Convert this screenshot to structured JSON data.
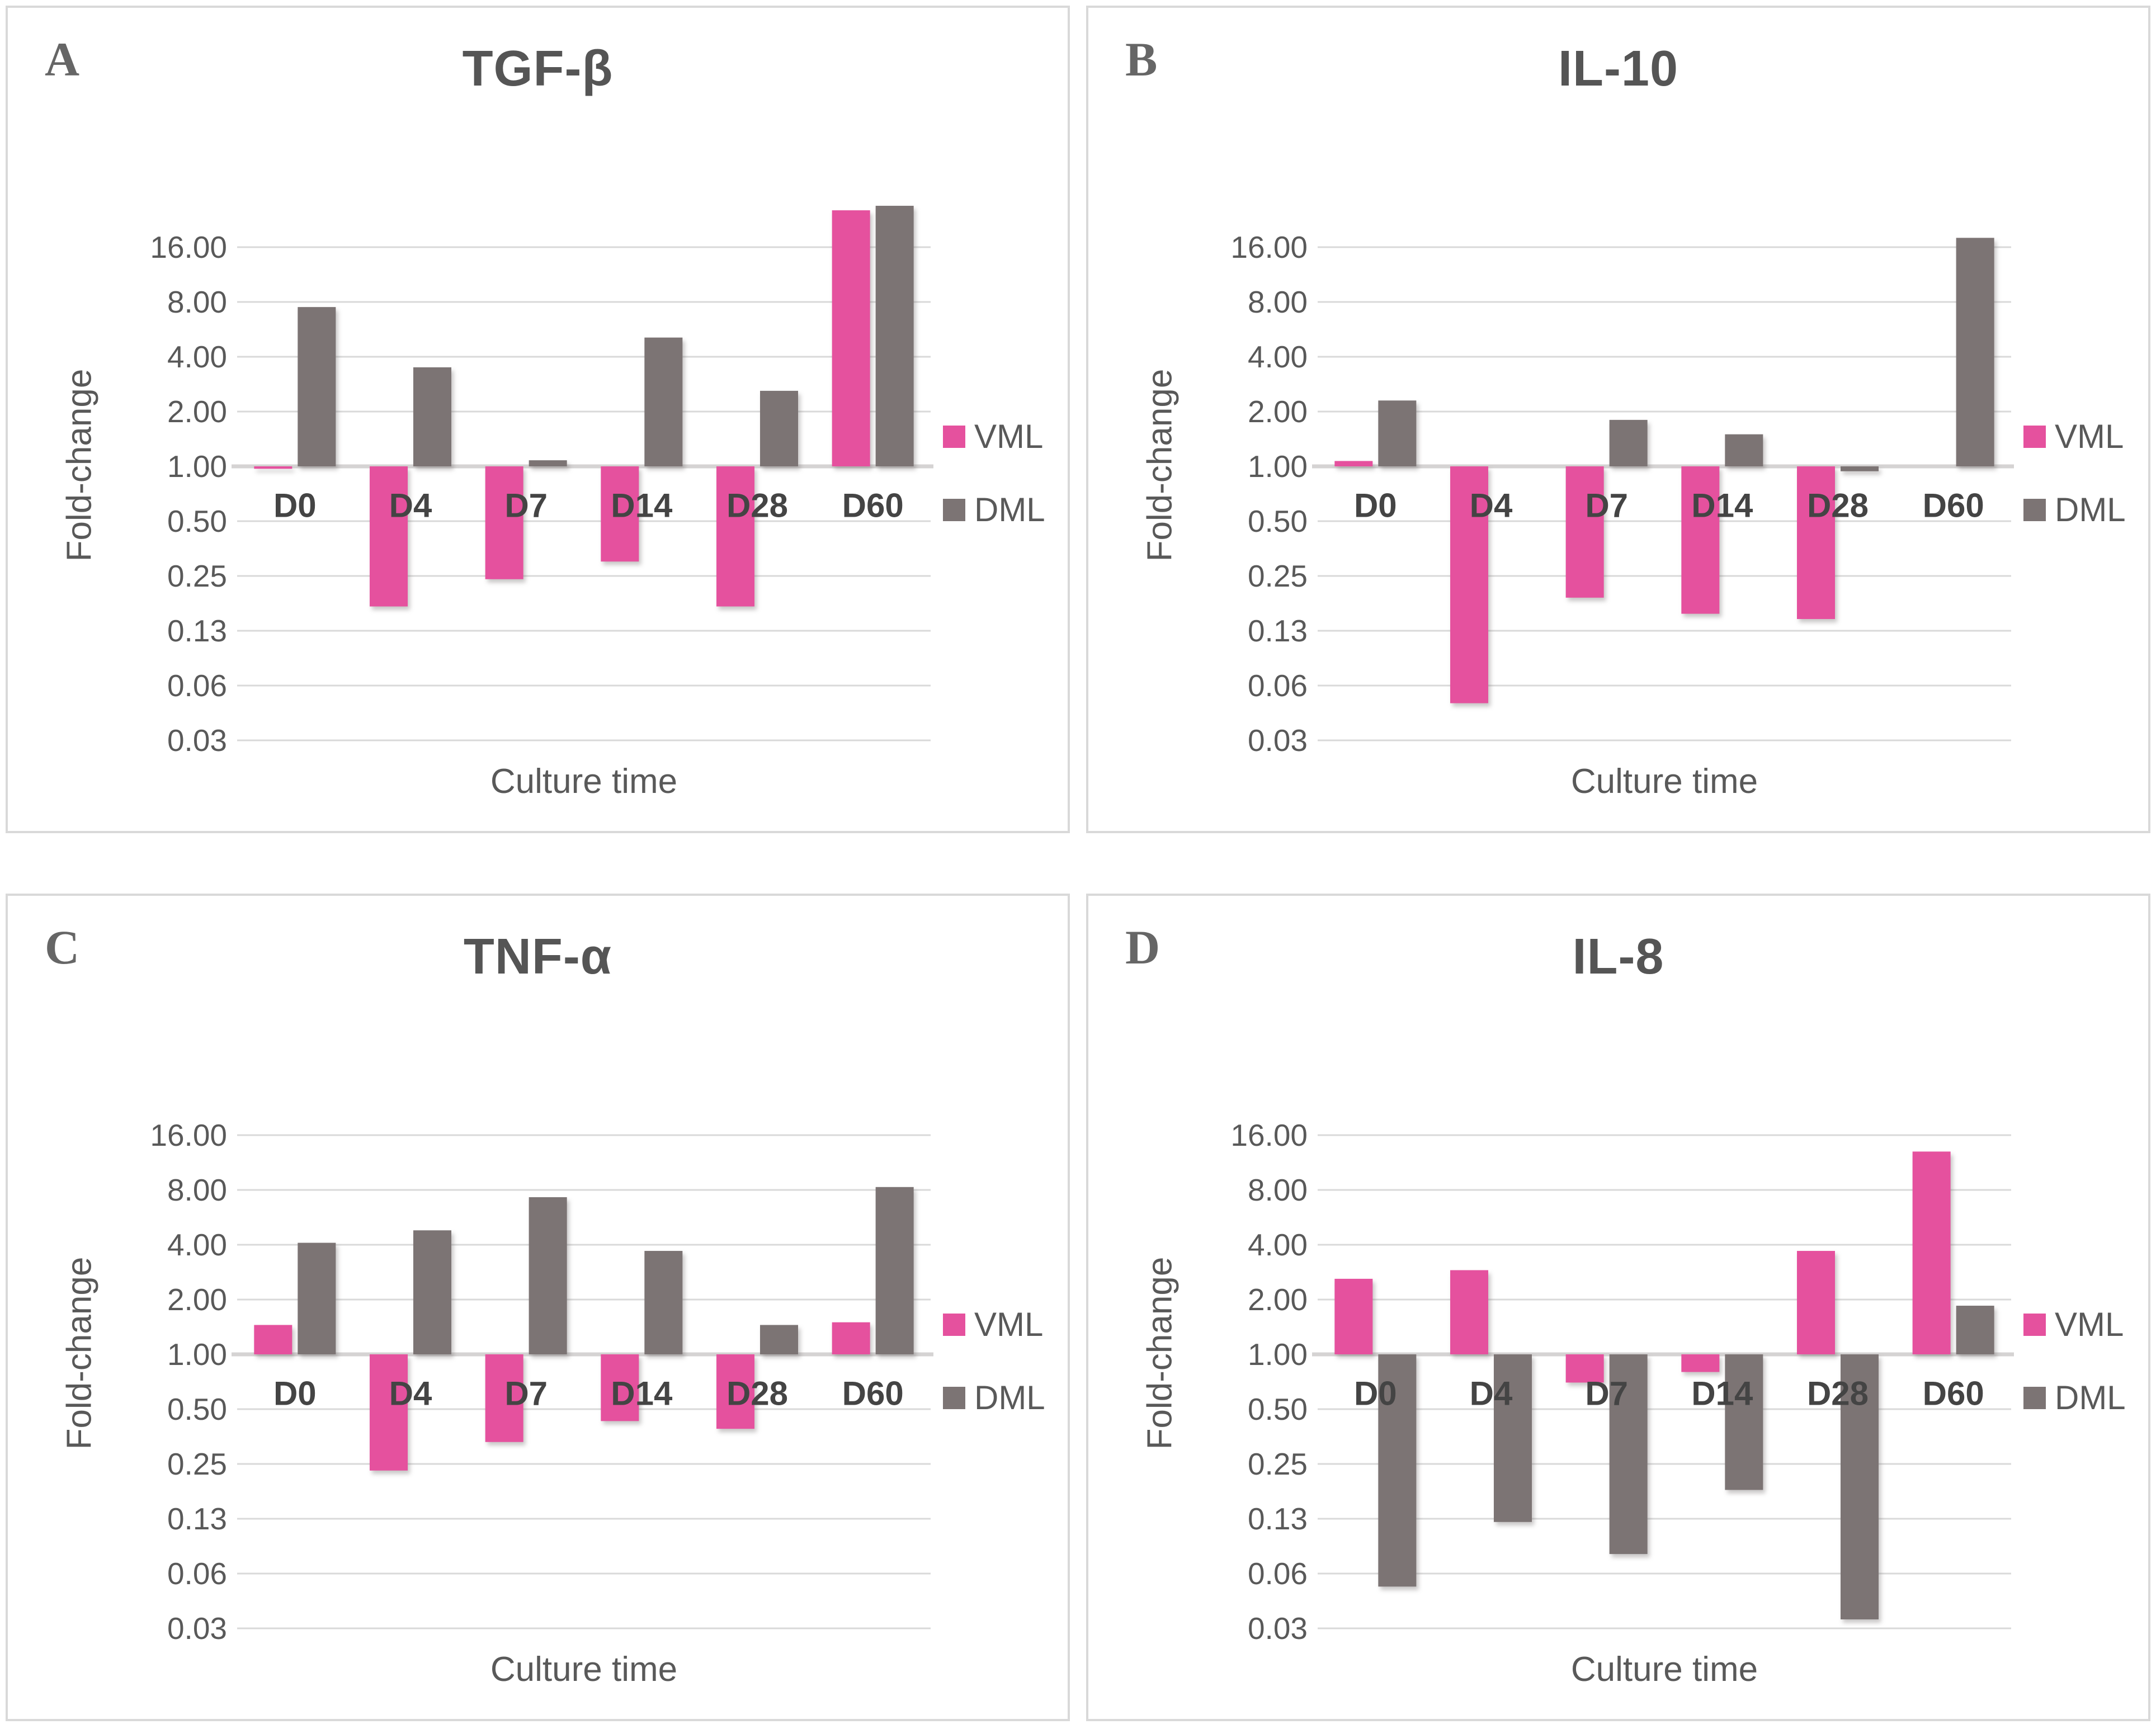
{
  "colors": {
    "vml": "#E5519E",
    "dml": "#7C7474",
    "gridline": "#D9D9D9",
    "axis_baseline": "#D5D3D3",
    "panel_border": "#D9D9D9",
    "title_text": "#555555",
    "tick_text": "#595959",
    "category_text": "#444444",
    "panel_letter_text": "#666666"
  },
  "legend": {
    "items": [
      {
        "label": "VML",
        "color": "#E5519E"
      },
      {
        "label": "DML",
        "color": "#7C7474"
      }
    ]
  },
  "axes": {
    "y_label": "Fold-change",
    "x_label": "Culture time",
    "y_tick_labels": [
      "16.00",
      "8.00",
      "4.00",
      "2.00",
      "1.00",
      "0.50",
      "0.25",
      "0.13",
      "0.06",
      "0.03"
    ],
    "y_tick_values": [
      16,
      8,
      4,
      2,
      1,
      0.5,
      0.25,
      0.125,
      0.0625,
      0.03125
    ],
    "categories": [
      "D0",
      "D4",
      "D7",
      "D14",
      "D28",
      "D60"
    ]
  },
  "chart_data": [
    {
      "panel_letter": "A",
      "type": "bar",
      "title": "TGF-β",
      "xlabel": "Culture time",
      "ylabel": "Fold-change",
      "y_scale": "log2",
      "ylim": [
        0.027,
        28
      ],
      "grid": true,
      "legend_position": "right",
      "categories": [
        "D0",
        "D4",
        "D7",
        "D14",
        "D28",
        "D60"
      ],
      "series": [
        {
          "name": "VML",
          "color": "#E5519E",
          "values": [
            0.97,
            0.17,
            0.24,
            0.3,
            0.17,
            25.5
          ]
        },
        {
          "name": "DML",
          "color": "#7C7474",
          "values": [
            7.5,
            3.5,
            1.08,
            5.1,
            2.6,
            27.0
          ]
        }
      ]
    },
    {
      "panel_letter": "B",
      "type": "bar",
      "title": "IL-10",
      "xlabel": "Culture time",
      "ylabel": "Fold-change",
      "y_scale": "log2",
      "ylim": [
        0.027,
        28
      ],
      "grid": true,
      "legend_position": "right",
      "categories": [
        "D0",
        "D4",
        "D7",
        "D14",
        "D28",
        "D60"
      ],
      "series": [
        {
          "name": "VML",
          "color": "#E5519E",
          "values": [
            1.07,
            0.05,
            0.19,
            0.155,
            0.145,
            1.0
          ]
        },
        {
          "name": "DML",
          "color": "#7C7474",
          "values": [
            2.3,
            1.0,
            1.8,
            1.5,
            0.94,
            18.0
          ]
        }
      ]
    },
    {
      "panel_letter": "C",
      "type": "bar",
      "title": "TNF-α",
      "xlabel": "Culture time",
      "ylabel": "Fold-change",
      "y_scale": "log2",
      "ylim": [
        0.027,
        28
      ],
      "grid": true,
      "legend_position": "right",
      "categories": [
        "D0",
        "D4",
        "D7",
        "D14",
        "D28",
        "D60"
      ],
      "series": [
        {
          "name": "VML",
          "color": "#E5519E",
          "values": [
            1.45,
            0.23,
            0.33,
            0.43,
            0.39,
            1.5
          ]
        },
        {
          "name": "DML",
          "color": "#7C7474",
          "values": [
            4.1,
            4.8,
            7.3,
            3.7,
            1.45,
            8.3
          ]
        }
      ]
    },
    {
      "panel_letter": "D",
      "type": "bar",
      "title": "IL-8",
      "xlabel": "Culture time",
      "ylabel": "Fold-change",
      "y_scale": "log2",
      "ylim": [
        0.027,
        28
      ],
      "grid": true,
      "legend_position": "right",
      "categories": [
        "D0",
        "D4",
        "D7",
        "D14",
        "D28",
        "D60"
      ],
      "series": [
        {
          "name": "VML",
          "color": "#E5519E",
          "values": [
            2.6,
            2.9,
            0.7,
            0.8,
            3.7,
            13.0
          ]
        },
        {
          "name": "DML",
          "color": "#7C7474",
          "values": [
            0.053,
            0.12,
            0.08,
            0.18,
            0.035,
            1.85
          ]
        }
      ]
    }
  ]
}
